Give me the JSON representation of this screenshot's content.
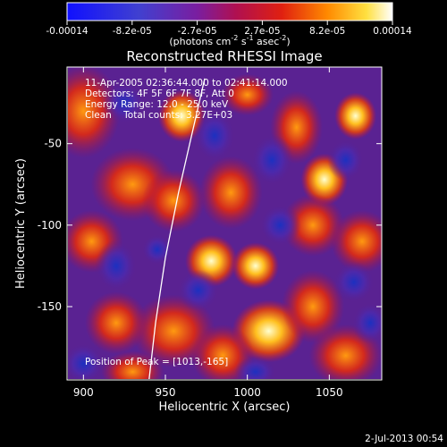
{
  "chart_data": {
    "type": "heatmap",
    "title": "Reconstructed RHESSI Image",
    "xlabel": "Heliocentric X (arcsec)",
    "ylabel": "Heliocentric Y (arcsec)",
    "x_range": [
      890,
      1082
    ],
    "y_range": [
      -195,
      -3
    ],
    "x_ticks": [
      900,
      950,
      1000,
      1050
    ],
    "y_ticks": [
      -50,
      -100,
      -150
    ],
    "colorbar": {
      "range": [
        -0.00014,
        0.00014
      ],
      "tick_labels": [
        "-0.00014",
        "-8.2e-05",
        "-2.7e-05",
        "2.7e-05",
        "8.2e-05",
        "0.00014"
      ],
      "unit_label": "(photons cm",
      "unit_label_sup1": "-2",
      "unit_label_mid": " s",
      "unit_label_sup2": "-1",
      "unit_label_mid2": " asec",
      "unit_label_sup3": "-2",
      "unit_label_end": ")",
      "colormap": "rhessi-blue-purple-red-yellow-white"
    },
    "annotations": {
      "time_range": "11-Apr-2005 02:36:44.000 to 02:41:14.000",
      "detectors": "Detectors: 4F 5F 6F 7F 8F, Att 0",
      "energy_range": "Energy Range: 12.0 - 25.0 keV",
      "clean_counts": "Clean    Total counts: 3.27E+03",
      "peak": "Position of Peak = [1013,-165]"
    },
    "peak_position": [
      1013,
      -165
    ],
    "limb_curve": [
      [
        940,
        -195
      ],
      [
        944,
        -160
      ],
      [
        950,
        -120
      ],
      [
        958,
        -80
      ],
      [
        966,
        -45
      ],
      [
        974,
        -10
      ]
    ]
  },
  "footer": {
    "timestamp": "2-Jul-2013 00:54"
  }
}
